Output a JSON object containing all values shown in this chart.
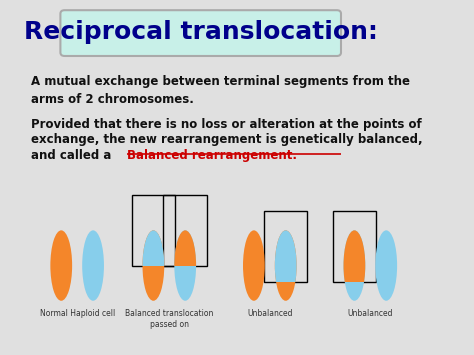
{
  "title": "Reciprocal translocation:",
  "title_bg": "#c8f0e8",
  "title_color": "#00008B",
  "title_fontsize": 18,
  "bg_color": "#f0f0f0",
  "text1": "A mutual exchange between terminal segments from the\narms of 2 chromosomes.",
  "text2_line1": "Provided that there is no loss or alteration at the points of",
  "text2_line2": "exchange, the new rearrangement is genetically balanced,",
  "text2_line3_prefix": "and called a  ",
  "text2_highlight": "Balanced rearrangement",
  "text2_suffix": ".",
  "text_color": "#111111",
  "highlight_color": "#cc0000",
  "orange": "#F4862A",
  "blue": "#87CEEB",
  "labels": [
    "Normal Haploid cell",
    "Balanced translocation\npassed on",
    "Unbalanced",
    "Unbalanced"
  ],
  "label_fontsize": 5.5
}
